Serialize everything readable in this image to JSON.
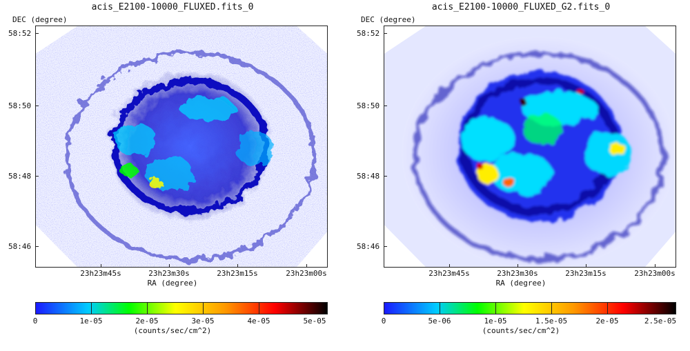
{
  "panels": [
    {
      "title": "acis_E2100-10000_FLUXED.fits_0",
      "ylabel": "DEC (degree)",
      "yticks": [
        "58:52",
        "58:50",
        "58:48",
        "58:46"
      ],
      "xticks": [
        "23h23m45s",
        "23h23m30s",
        "23h23m15s",
        "23h23m00s"
      ],
      "xlabel": "RA (degree)",
      "colorbar_ticks": [
        "0",
        "1e-05",
        "2e-05",
        "3e-05",
        "4e-05",
        "5e-05"
      ],
      "colorbar_unit": "(counts/sec/cm^2)"
    },
    {
      "title": "acis_E2100-10000_FLUXED_G2.fits_0",
      "ylabel": "DEC (degree)",
      "yticks": [
        "58:52",
        "58:50",
        "58:48",
        "58:46"
      ],
      "xticks": [
        "23h23m45s",
        "23h23m30s",
        "23h23m15s",
        "23h23m00s"
      ],
      "xlabel": "RA (degree)",
      "colorbar_ticks": [
        "0",
        "5e-06",
        "1e-05",
        "1.5e-05",
        "2e-05",
        "2.5e-05"
      ],
      "colorbar_unit": "(counts/sec/cm^2)"
    }
  ],
  "colormap": [
    "#ffffff",
    "#1a1aff",
    "#00ccff",
    "#00ff00",
    "#ffff00",
    "#ff7f00",
    "#ff0000",
    "#000000"
  ]
}
